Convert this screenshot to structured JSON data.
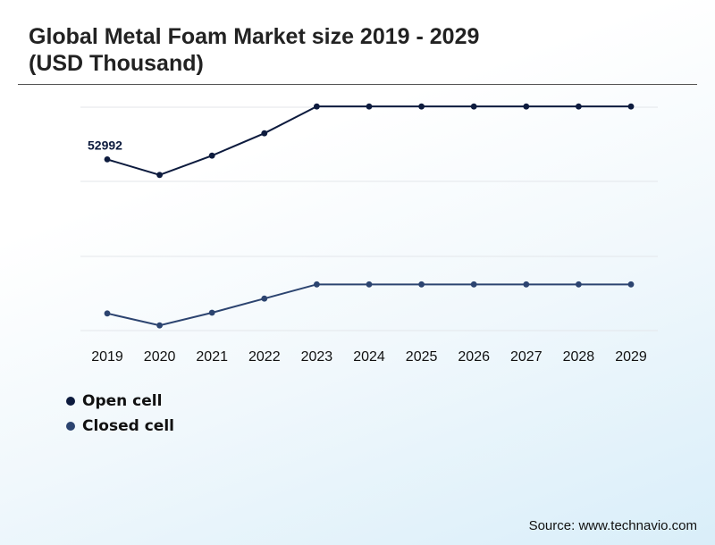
{
  "title": "Global Metal Foam Market size 2019 - 2029\n(USD Thousand)",
  "source": "Source: www.technavio.com",
  "chart_data": {
    "type": "line",
    "categories": [
      "2019",
      "2020",
      "2021",
      "2022",
      "2023",
      "2024",
      "2025",
      "2026",
      "2027",
      "2028",
      "2029"
    ],
    "series": [
      {
        "name": "Open cell",
        "color": "#0d1b3e",
        "values": [
          52992,
          50900,
          53500,
          56500,
          60100,
          60100,
          60100,
          60100,
          60100,
          60100,
          60100
        ]
      },
      {
        "name": "Closed cell",
        "color": "#2c4470",
        "values": [
          32300,
          30700,
          32400,
          34300,
          36200,
          36200,
          36200,
          36200,
          36200,
          36200,
          36200
        ]
      }
    ],
    "annotations": [
      {
        "series": 0,
        "index": 0,
        "label": "52992"
      }
    ],
    "ylim": [
      30000,
      60000
    ],
    "grid": true,
    "legend": "bottom-left"
  }
}
